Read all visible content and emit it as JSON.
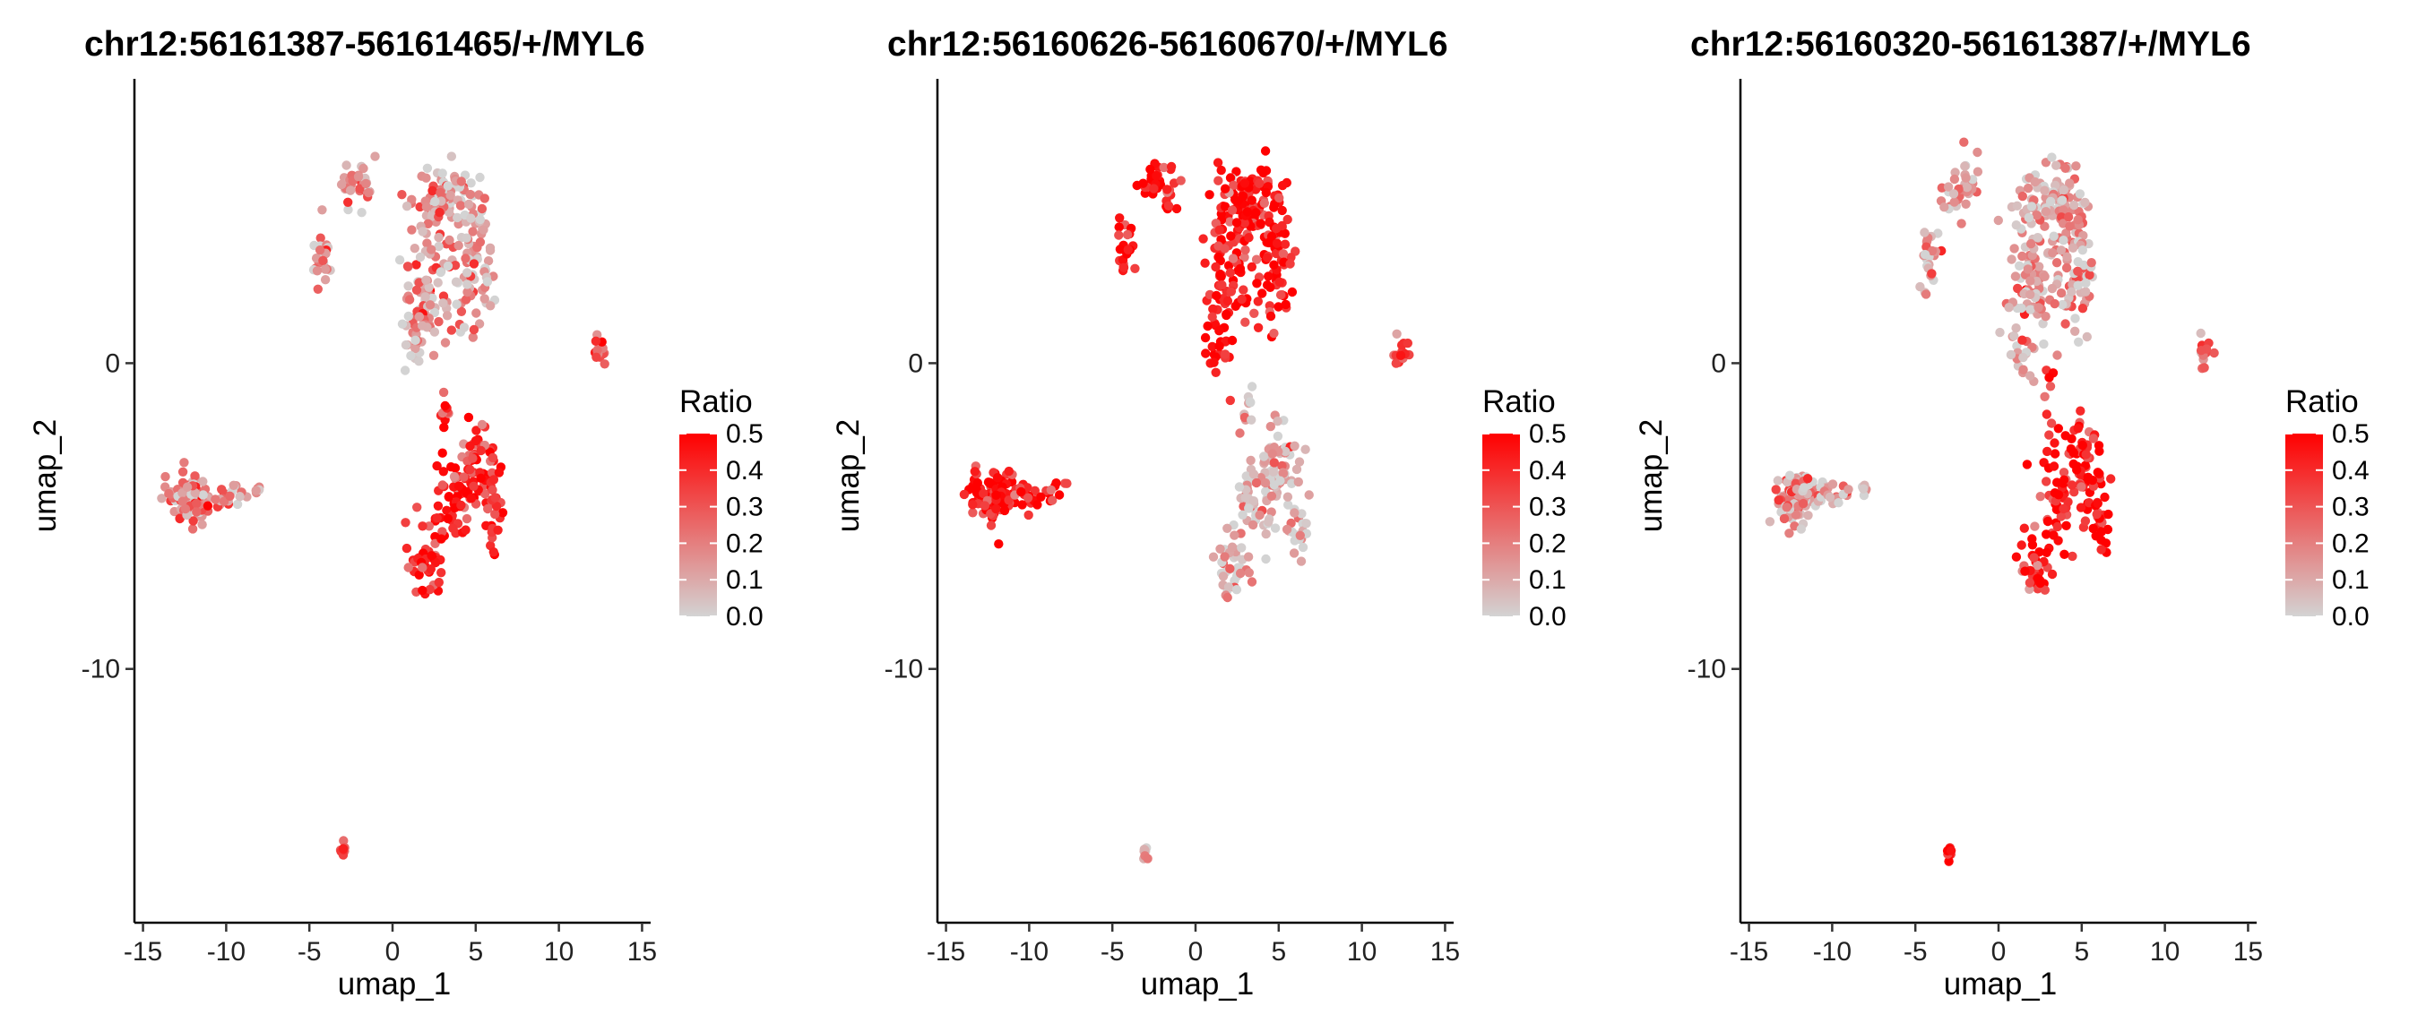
{
  "chart_data": [
    {
      "type": "scatter",
      "title": "chr12:56161387-56161465/+/MYL6",
      "xlabel": "umap_1",
      "ylabel": "umap_2",
      "x_ticks": [
        "-15",
        "-10",
        "-5",
        "0",
        "5",
        "10",
        "15"
      ],
      "y_ticks": [
        "0",
        "-10"
      ],
      "xlim": [
        -15.3,
        15.3
      ],
      "ylim": [
        -18.3,
        9.3
      ],
      "grid": false,
      "legend": {
        "title": "Ratio",
        "placement": "right",
        "labels": [
          "0.5",
          "0.4",
          "0.3",
          "0.2",
          "0.1",
          "0.0"
        ],
        "range": [
          0,
          0.5
        ]
      },
      "color_scale": {
        "low": "#d3d3d3",
        "high": "#ff0000"
      },
      "clusters": [
        {
          "name": "top-complex",
          "center": [
            2.8,
            3.2
          ],
          "ratio": 0.14
        },
        {
          "name": "left-blob",
          "center": [
            -12.0,
            -4.5
          ],
          "ratio": 0.18
        },
        {
          "name": "lower-central",
          "center": [
            3.6,
            -4.6
          ],
          "ratio": 0.4
        },
        {
          "name": "right-streak",
          "center": [
            12.4,
            0.3
          ],
          "ratio": 0.3
        },
        {
          "name": "bottom-dot",
          "center": [
            -3.0,
            -16.0
          ],
          "ratio": 0.45
        }
      ]
    },
    {
      "type": "scatter",
      "title": "chr12:56160626-56160670/+/MYL6",
      "xlabel": "umap_1",
      "ylabel": "umap_2",
      "x_ticks": [
        "-15",
        "-10",
        "-5",
        "0",
        "5",
        "10",
        "15"
      ],
      "y_ticks": [
        "0",
        "-10"
      ],
      "xlim": [
        -15.3,
        15.3
      ],
      "ylim": [
        -18.3,
        9.3
      ],
      "grid": false,
      "legend": {
        "title": "Ratio",
        "placement": "right",
        "labels": [
          "0.5",
          "0.4",
          "0.3",
          "0.2",
          "0.1",
          "0.0"
        ],
        "range": [
          0,
          0.5
        ]
      },
      "color_scale": {
        "low": "#d3d3d3",
        "high": "#ff0000"
      },
      "clusters": [
        {
          "name": "top-complex",
          "center": [
            2.8,
            3.2
          ],
          "ratio": 0.45
        },
        {
          "name": "left-blob",
          "center": [
            -12.0,
            -4.5
          ],
          "ratio": 0.44
        },
        {
          "name": "lower-central",
          "center": [
            3.6,
            -4.6
          ],
          "ratio": 0.08
        },
        {
          "name": "right-streak",
          "center": [
            12.4,
            0.3
          ],
          "ratio": 0.4
        },
        {
          "name": "bottom-dot",
          "center": [
            -3.0,
            -16.0
          ],
          "ratio": 0.06
        }
      ]
    },
    {
      "type": "scatter",
      "title": "chr12:56160320-56161387/+/MYL6",
      "xlabel": "umap_1",
      "ylabel": "umap_2",
      "x_ticks": [
        "-15",
        "-10",
        "-5",
        "0",
        "5",
        "10",
        "15"
      ],
      "y_ticks": [
        "0",
        "-10"
      ],
      "xlim": [
        -15.3,
        15.3
      ],
      "ylim": [
        -18.3,
        9.3
      ],
      "grid": false,
      "legend": {
        "title": "Ratio",
        "placement": "right",
        "labels": [
          "0.5",
          "0.4",
          "0.3",
          "0.2",
          "0.1",
          "0.0"
        ],
        "range": [
          0,
          0.5
        ]
      },
      "color_scale": {
        "low": "#d3d3d3",
        "high": "#ff0000"
      },
      "clusters": [
        {
          "name": "top-complex",
          "center": [
            2.8,
            3.2
          ],
          "ratio": 0.12
        },
        {
          "name": "left-blob",
          "center": [
            -12.0,
            -4.5
          ],
          "ratio": 0.12
        },
        {
          "name": "lower-central",
          "center": [
            3.6,
            -4.6
          ],
          "ratio": 0.42
        },
        {
          "name": "right-streak",
          "center": [
            12.4,
            0.3
          ],
          "ratio": 0.28
        },
        {
          "name": "bottom-dot",
          "center": [
            -3.0,
            -16.0
          ],
          "ratio": 0.45
        }
      ]
    }
  ]
}
